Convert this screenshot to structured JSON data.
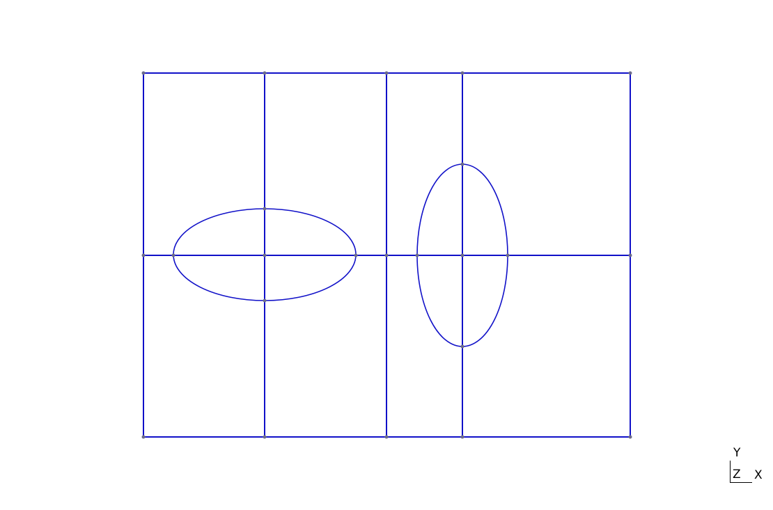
{
  "colors": {
    "background": "#ffffff",
    "edge": "#1010c8",
    "vertex": "#6b6b8a",
    "axis_text": "#000000"
  },
  "axis_triad": {
    "y_label": "Y",
    "z_label": "Z",
    "x_label": "X"
  }
}
